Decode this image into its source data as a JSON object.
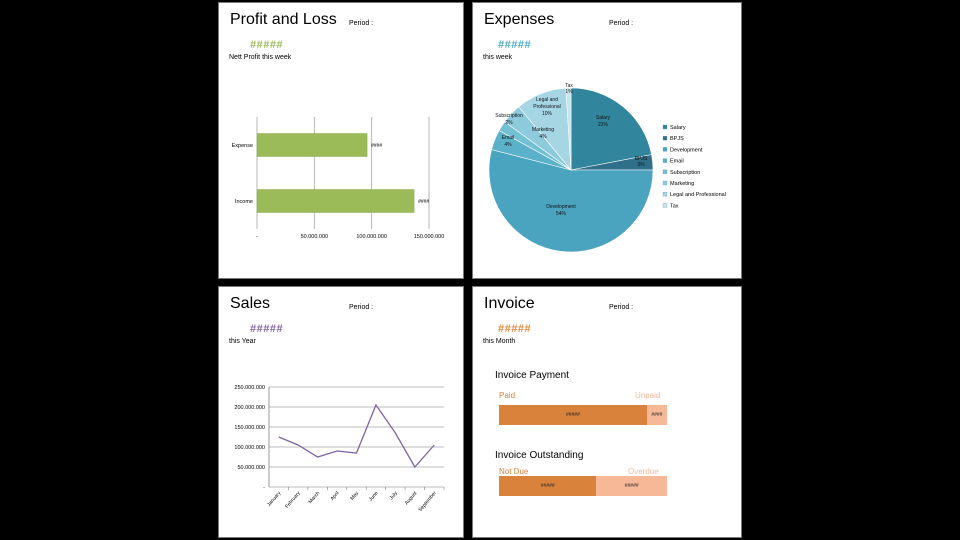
{
  "profit_loss": {
    "title": "Profit and Loss",
    "period_label": "Period :",
    "value": "#####",
    "value_color": "#9bbb59",
    "subtitle": "Nett Profit this week"
  },
  "expenses": {
    "title": "Expenses",
    "period_label": "Period :",
    "value": "#####",
    "value_color": "#4bacc6",
    "subtitle": "this week"
  },
  "sales": {
    "title": "Sales",
    "period_label": "Period :",
    "value": "#####",
    "value_color": "#8064a2",
    "subtitle": "this Year"
  },
  "invoice": {
    "title": "Invoice",
    "period_label": "Period :",
    "value": "#####",
    "value_color": "#e08a3c",
    "subtitle": "this Month",
    "payment": {
      "title": "Invoice Payment",
      "left_label": "Paid",
      "right_label": "Unpaid",
      "left_value": "#####",
      "right_value": "####",
      "left_fraction": 0.88,
      "left_color": "#d9823b",
      "right_color": "#f7b898"
    },
    "outstanding": {
      "title": "Invoice Outstanding",
      "left_label": "Not Due",
      "right_label": "Overdue",
      "left_value": "#####",
      "right_value": "#####",
      "left_fraction": 0.58,
      "left_color": "#d9823b",
      "right_color": "#f7b898"
    }
  },
  "chart_data": [
    {
      "type": "bar",
      "orientation": "horizontal",
      "categories": [
        "Expense",
        "Income"
      ],
      "values": [
        96000000,
        137000000
      ],
      "data_labels": [
        "####",
        "####"
      ],
      "xlim": [
        0,
        150000000
      ],
      "xticks": [
        "-",
        "50.000.000",
        "100.000.000",
        "150.000.000"
      ],
      "grid": true,
      "color": "#9bbb59"
    },
    {
      "type": "pie",
      "categories": [
        "Salary",
        "BPJS",
        "Development",
        "Email",
        "Subscription",
        "Marketing",
        "Legal and Professional",
        "Tax"
      ],
      "values": [
        22,
        3,
        54,
        4,
        2,
        4,
        10,
        1
      ],
      "labels": [
        "22%",
        "3%",
        "54%",
        "4%",
        "2%",
        "4%",
        "10%",
        "1%"
      ],
      "colors": [
        "#31859c",
        "#2f6f8a",
        "#4aa3bf",
        "#5bb1c9",
        "#73bfd3",
        "#8ccadc",
        "#a6d5e4",
        "#c6e3ee"
      ],
      "legend": "right"
    },
    {
      "type": "line",
      "categories": [
        "January",
        "February",
        "March",
        "April",
        "May",
        "June",
        "July",
        "August",
        "September"
      ],
      "values": [
        125000000,
        105000000,
        75000000,
        90000000,
        85000000,
        205000000,
        135000000,
        50000000,
        105000000
      ],
      "ylim": [
        0,
        250000000
      ],
      "yticks": [
        "-",
        "50.000.000",
        "100.000.000",
        "150.000.000",
        "200.000.000",
        "250.000.000"
      ],
      "grid": true,
      "color": "#8064a2"
    }
  ]
}
